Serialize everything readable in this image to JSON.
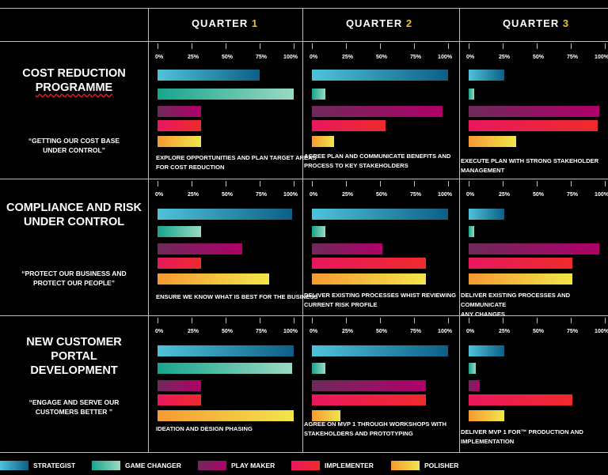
{
  "quarters": [
    {
      "label": "QUARTER",
      "num": "1"
    },
    {
      "label": "QUARTER",
      "num": "2"
    },
    {
      "label": "QUARTER",
      "num": "3"
    }
  ],
  "rows": [
    {
      "title_lines": [
        "COST REDUCTION",
        "PROGRAMME"
      ],
      "quote_lines": [
        "“GETTING OUR COST BASE",
        "UNDER CONTROL”"
      ]
    },
    {
      "title_lines": [
        "COMPLIANCE AND RISK",
        "UNDER CONTROL"
      ],
      "quote_lines": [
        "“PROTECT OUR BUSINESS AND",
        "PROTECT OUR PEOPLE”"
      ]
    },
    {
      "title_lines": [
        "NEW CUSTOMER",
        "PORTAL",
        "DEVELOPMENT"
      ],
      "quote_lines": [
        "“ENGAGE AND SERVE OUR",
        "CUSTOMERS BETTER ”"
      ]
    }
  ],
  "chart_data": {
    "type": "bar",
    "orientation": "horizontal",
    "title": "",
    "xlabel": "",
    "ylabel": "",
    "xlim": [
      0,
      100
    ],
    "unit": "%",
    "tick_labels": [
      "0%",
      "25%",
      "50%",
      "75%",
      "100%"
    ],
    "series_names": [
      "STRATEGIST",
      "GAME CHANGER",
      "PLAY MAKER",
      "IMPLEMENTER",
      "POLISHER"
    ],
    "series_colors": [
      [
        "#4fc3d9",
        "#0d5f86"
      ],
      [
        "#17a58c",
        "#9ad9c3"
      ],
      [
        "#6e2a5a",
        "#b0006a"
      ],
      [
        "#e8185f",
        "#ef2b2b"
      ],
      [
        "#f59a33",
        "#f1e64a"
      ]
    ],
    "legend_position": "bottom",
    "panels": [
      [
        {
          "caption": [
            "EXPLORE OPPORTUNITIES AND PLAN TARGET AREAS",
            "FOR COST REDUCTION"
          ],
          "values": [
            75,
            100,
            32,
            32,
            32
          ]
        },
        {
          "caption": [
            "AGREE PLAN AND COMMUNICATE BENEFITS AND",
            "PROCESS TO KEY STAKEHOLDERS"
          ],
          "values": [
            100,
            10,
            96,
            54,
            16
          ]
        },
        {
          "caption": [
            "EXECUTE PLAN WITH STRONG STAKEHOLDER",
            "MANAGEMENT"
          ],
          "values": [
            26,
            4,
            96,
            95,
            35
          ]
        }
      ],
      [
        {
          "caption": [
            "ENSURE WE KNOW WHAT IS BEST FOR THE BUSINESS"
          ],
          "values": [
            99,
            32,
            62,
            32,
            82
          ]
        },
        {
          "caption": [
            "DELIVER EXISTING PROCESSES WHIST REVIEWING",
            "CURRENT RISK PROFILE"
          ],
          "values": [
            100,
            10,
            52,
            84,
            84
          ]
        },
        {
          "caption": [
            "DELIVER EXISTING PROCESSES AND COMMUNICATE",
            "ANY CHANGES"
          ],
          "values": [
            26,
            4,
            96,
            76,
            76
          ]
        }
      ],
      [
        {
          "caption": [
            "IDEATION AND DESIGN PHASING"
          ],
          "values": [
            100,
            99,
            32,
            32,
            100
          ]
        },
        {
          "caption": [
            "AGREE ON MVP 1 THROUGH WORKSHOPS WITH",
            "STAKEHOLDERS AND PROTOTYPING"
          ],
          "values": [
            100,
            10,
            84,
            84,
            21
          ]
        },
        {
          "caption": [
            "DELIVER MVP 1 FOR™ PRODUCTION AND",
            "IMPLEMENTATION"
          ],
          "values": [
            26,
            5,
            8,
            76,
            26
          ]
        }
      ]
    ]
  }
}
